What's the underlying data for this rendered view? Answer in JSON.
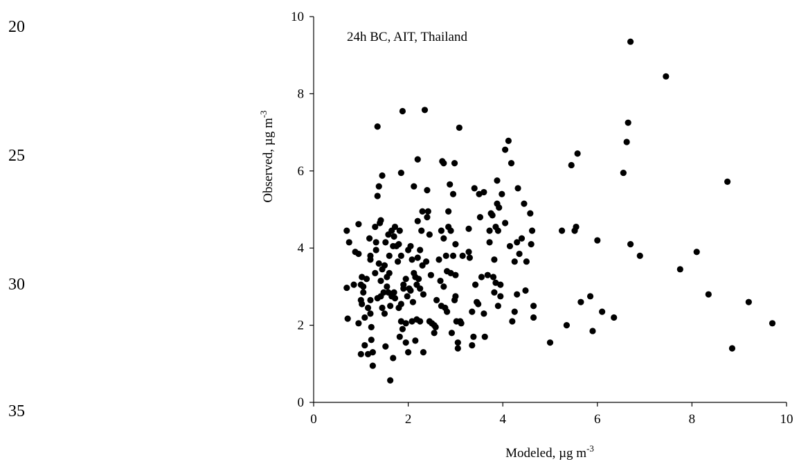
{
  "line_numbers": [
    "20",
    "25",
    "30",
    "35"
  ],
  "chart_data": {
    "type": "scatter",
    "annotation": "24h BC, AIT, Thailand",
    "xlabel_main": "Modeled, µg m",
    "xlabel_sup": "-3",
    "ylabel_main": "Observed, µg m",
    "ylabel_sup": "-3",
    "xlim": [
      0,
      10
    ],
    "ylim": [
      0,
      10
    ],
    "xticks": [
      "0",
      "2",
      "4",
      "6",
      "8",
      "10"
    ],
    "yticks": [
      "0",
      "2",
      "4",
      "6",
      "8",
      "10"
    ],
    "grid": false,
    "marker_color": "#000000",
    "points": [
      [
        0.7,
        4.45
      ],
      [
        0.75,
        4.15
      ],
      [
        0.7,
        2.97
      ],
      [
        0.72,
        2.17
      ],
      [
        0.85,
        3.05
      ],
      [
        0.88,
        3.9
      ],
      [
        0.95,
        4.62
      ],
      [
        0.95,
        3.85
      ],
      [
        0.95,
        2.05
      ],
      [
        1.0,
        3.05
      ],
      [
        1.02,
        3.25
      ],
      [
        1.0,
        2.65
      ],
      [
        1.02,
        2.55
      ],
      [
        1.0,
        1.25
      ],
      [
        1.05,
        3.0
      ],
      [
        1.05,
        2.85
      ],
      [
        1.08,
        2.2
      ],
      [
        1.08,
        1.48
      ],
      [
        1.12,
        3.2
      ],
      [
        1.15,
        2.45
      ],
      [
        1.15,
        1.25
      ],
      [
        1.18,
        4.25
      ],
      [
        1.2,
        3.8
      ],
      [
        1.2,
        3.7
      ],
      [
        1.2,
        2.65
      ],
      [
        1.2,
        2.3
      ],
      [
        1.22,
        1.95
      ],
      [
        1.22,
        1.62
      ],
      [
        1.25,
        1.3
      ],
      [
        1.25,
        0.95
      ],
      [
        1.3,
        4.55
      ],
      [
        1.32,
        4.15
      ],
      [
        1.32,
        3.95
      ],
      [
        1.3,
        3.35
      ],
      [
        1.35,
        7.15
      ],
      [
        1.35,
        5.35
      ],
      [
        1.35,
        2.7
      ],
      [
        1.38,
        5.6
      ],
      [
        1.38,
        3.6
      ],
      [
        1.4,
        4.65
      ],
      [
        1.42,
        4.72
      ],
      [
        1.42,
        3.15
      ],
      [
        1.42,
        2.75
      ],
      [
        1.45,
        5.88
      ],
      [
        1.45,
        3.45
      ],
      [
        1.45,
        2.45
      ],
      [
        1.48,
        2.85
      ],
      [
        1.5,
        3.55
      ],
      [
        1.5,
        2.3
      ],
      [
        1.52,
        4.15
      ],
      [
        1.52,
        1.45
      ],
      [
        1.55,
        3.25
      ],
      [
        1.55,
        3.0
      ],
      [
        1.58,
        4.35
      ],
      [
        1.58,
        2.85
      ],
      [
        1.6,
        3.8
      ],
      [
        1.6,
        3.35
      ],
      [
        1.62,
        2.5
      ],
      [
        1.62,
        0.57
      ],
      [
        1.65,
        4.45
      ],
      [
        1.65,
        2.75
      ],
      [
        1.68,
        4.05
      ],
      [
        1.68,
        1.15
      ],
      [
        1.7,
        4.3
      ],
      [
        1.7,
        2.85
      ],
      [
        1.72,
        4.55
      ],
      [
        1.72,
        2.7
      ],
      [
        1.75,
        4.05
      ],
      [
        1.78,
        3.65
      ],
      [
        1.8,
        4.1
      ],
      [
        1.8,
        2.45
      ],
      [
        1.82,
        4.45
      ],
      [
        1.82,
        1.7
      ],
      [
        1.85,
        5.95
      ],
      [
        1.85,
        3.8
      ],
      [
        1.85,
        2.55
      ],
      [
        1.85,
        2.1
      ],
      [
        1.88,
        7.55
      ],
      [
        1.88,
        1.9
      ],
      [
        1.9,
        3.05
      ],
      [
        1.9,
        2.95
      ],
      [
        1.95,
        3.2
      ],
      [
        1.95,
        2.05
      ],
      [
        1.95,
        1.55
      ],
      [
        1.98,
        2.75
      ],
      [
        2.0,
        3.95
      ],
      [
        2.0,
        1.3
      ],
      [
        2.02,
        2.95
      ],
      [
        2.05,
        4.05
      ],
      [
        2.05,
        2.9
      ],
      [
        2.08,
        3.7
      ],
      [
        2.08,
        2.1
      ],
      [
        2.1,
        2.6
      ],
      [
        2.12,
        5.6
      ],
      [
        2.12,
        3.35
      ],
      [
        2.15,
        3.25
      ],
      [
        2.15,
        1.6
      ],
      [
        2.18,
        3.05
      ],
      [
        2.18,
        2.15
      ],
      [
        2.2,
        6.3
      ],
      [
        2.2,
        4.7
      ],
      [
        2.2,
        3.75
      ],
      [
        2.22,
        3.2
      ],
      [
        2.25,
        3.95
      ],
      [
        2.25,
        2.95
      ],
      [
        2.25,
        2.1
      ],
      [
        2.28,
        4.45
      ],
      [
        2.3,
        4.95
      ],
      [
        2.3,
        3.55
      ],
      [
        2.32,
        2.8
      ],
      [
        2.32,
        1.3
      ],
      [
        2.35,
        7.58
      ],
      [
        2.38,
        3.65
      ],
      [
        2.4,
        5.5
      ],
      [
        2.4,
        4.8
      ],
      [
        2.42,
        4.95
      ],
      [
        2.45,
        4.35
      ],
      [
        2.45,
        2.1
      ],
      [
        2.48,
        3.3
      ],
      [
        2.5,
        2.05
      ],
      [
        2.55,
        2.0
      ],
      [
        2.55,
        1.8
      ],
      [
        2.58,
        1.95
      ],
      [
        2.6,
        2.65
      ],
      [
        2.65,
        3.7
      ],
      [
        2.68,
        3.15
      ],
      [
        2.7,
        4.45
      ],
      [
        2.7,
        2.5
      ],
      [
        2.72,
        6.25
      ],
      [
        2.75,
        6.2
      ],
      [
        2.75,
        4.25
      ],
      [
        2.75,
        3.0
      ],
      [
        2.78,
        2.45
      ],
      [
        2.8,
        3.8
      ],
      [
        2.82,
        3.4
      ],
      [
        2.82,
        2.35
      ],
      [
        2.85,
        4.95
      ],
      [
        2.85,
        4.55
      ],
      [
        2.88,
        5.65
      ],
      [
        2.9,
        4.45
      ],
      [
        2.9,
        3.35
      ],
      [
        2.92,
        1.8
      ],
      [
        2.95,
        5.4
      ],
      [
        2.95,
        3.8
      ],
      [
        2.98,
        6.2
      ],
      [
        2.98,
        2.65
      ],
      [
        3.0,
        4.1
      ],
      [
        3.0,
        3.3
      ],
      [
        3.0,
        2.75
      ],
      [
        3.02,
        2.1
      ],
      [
        3.05,
        1.4
      ],
      [
        3.05,
        1.55
      ],
      [
        3.08,
        7.12
      ],
      [
        3.1,
        2.1
      ],
      [
        3.12,
        2.05
      ],
      [
        3.15,
        3.8
      ],
      [
        3.28,
        4.5
      ],
      [
        3.28,
        3.9
      ],
      [
        3.3,
        3.75
      ],
      [
        3.35,
        2.35
      ],
      [
        3.35,
        1.48
      ],
      [
        3.38,
        1.7
      ],
      [
        3.4,
        5.55
      ],
      [
        3.42,
        3.05
      ],
      [
        3.45,
        2.6
      ],
      [
        3.48,
        2.55
      ],
      [
        3.5,
        5.4
      ],
      [
        3.52,
        4.8
      ],
      [
        3.55,
        3.25
      ],
      [
        3.6,
        5.45
      ],
      [
        3.6,
        2.3
      ],
      [
        3.62,
        1.7
      ],
      [
        3.68,
        3.3
      ],
      [
        3.72,
        4.45
      ],
      [
        3.72,
        4.15
      ],
      [
        3.75,
        4.9
      ],
      [
        3.78,
        4.85
      ],
      [
        3.8,
        3.25
      ],
      [
        3.82,
        3.7
      ],
      [
        3.82,
        2.85
      ],
      [
        3.85,
        4.55
      ],
      [
        3.85,
        3.1
      ],
      [
        3.88,
        5.75
      ],
      [
        3.88,
        5.15
      ],
      [
        3.9,
        4.45
      ],
      [
        3.9,
        2.5
      ],
      [
        3.92,
        5.05
      ],
      [
        3.95,
        3.05
      ],
      [
        3.95,
        2.75
      ],
      [
        3.98,
        5.4
      ],
      [
        4.05,
        6.55
      ],
      [
        4.05,
        4.65
      ],
      [
        4.12,
        6.78
      ],
      [
        4.15,
        4.05
      ],
      [
        4.18,
        6.2
      ],
      [
        4.2,
        2.1
      ],
      [
        4.25,
        3.65
      ],
      [
        4.25,
        2.35
      ],
      [
        4.3,
        4.15
      ],
      [
        4.3,
        2.8
      ],
      [
        4.32,
        5.55
      ],
      [
        4.35,
        3.85
      ],
      [
        4.4,
        4.25
      ],
      [
        4.45,
        5.15
      ],
      [
        4.48,
        2.9
      ],
      [
        4.5,
        3.65
      ],
      [
        4.58,
        4.9
      ],
      [
        4.6,
        4.1
      ],
      [
        4.62,
        4.45
      ],
      [
        4.65,
        2.5
      ],
      [
        4.65,
        2.2
      ],
      [
        5.0,
        1.55
      ],
      [
        5.25,
        4.45
      ],
      [
        5.35,
        2.0
      ],
      [
        5.45,
        6.15
      ],
      [
        5.52,
        4.45
      ],
      [
        5.55,
        4.55
      ],
      [
        5.58,
        6.45
      ],
      [
        5.65,
        2.6
      ],
      [
        5.85,
        2.75
      ],
      [
        5.9,
        1.85
      ],
      [
        6.0,
        4.2
      ],
      [
        6.1,
        2.35
      ],
      [
        6.35,
        2.2
      ],
      [
        6.55,
        5.95
      ],
      [
        6.62,
        6.75
      ],
      [
        6.65,
        7.25
      ],
      [
        6.7,
        9.35
      ],
      [
        6.7,
        4.1
      ],
      [
        6.9,
        3.8
      ],
      [
        7.45,
        8.45
      ],
      [
        7.75,
        3.45
      ],
      [
        8.1,
        3.9
      ],
      [
        8.35,
        2.8
      ],
      [
        8.75,
        5.72
      ],
      [
        8.85,
        1.4
      ],
      [
        9.2,
        2.6
      ],
      [
        9.7,
        2.05
      ]
    ]
  }
}
